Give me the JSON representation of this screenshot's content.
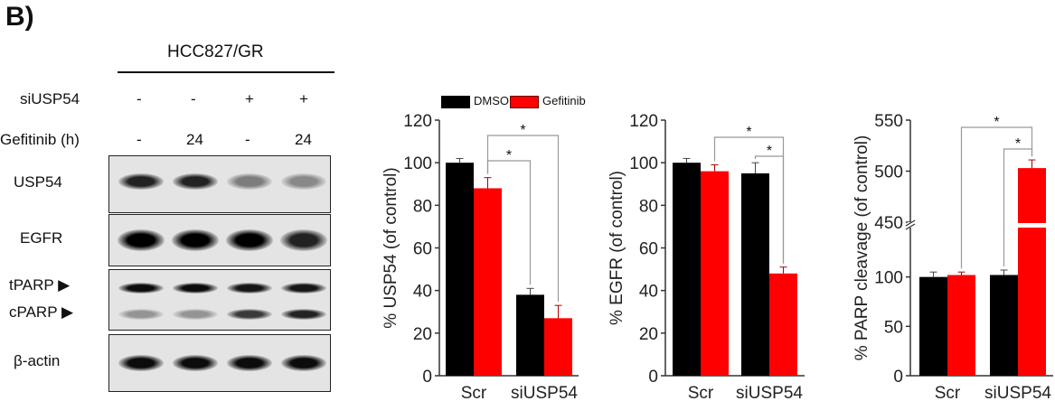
{
  "panel_label": "B)",
  "blot": {
    "cell_line": "HCC827/GR",
    "rows": [
      {
        "label": "siUSP54",
        "values": [
          "-",
          "-",
          "+",
          "+"
        ]
      },
      {
        "label": "Gefitinib (h)",
        "values": [
          "-",
          "24",
          "-",
          "24"
        ]
      }
    ],
    "panels": [
      {
        "label": "USP54",
        "intensity": [
          0.85,
          0.85,
          0.45,
          0.4
        ]
      },
      {
        "label": "EGFR",
        "intensity": [
          1,
          1,
          1,
          0.85
        ]
      },
      {
        "label": "tPARP ▶",
        "label2": "cPARP ▶",
        "intensity": [
          0.95,
          0.95,
          0.9,
          0.9
        ],
        "intensity2": [
          0.35,
          0.35,
          0.75,
          0.85
        ]
      },
      {
        "label": "β-actin",
        "intensity": [
          0.95,
          0.95,
          0.95,
          0.95
        ]
      }
    ]
  },
  "legend": [
    {
      "name": "DMSO",
      "color": "#000000"
    },
    {
      "name": "Gefitinib",
      "color": "#ff0000"
    }
  ],
  "chart_data": [
    {
      "type": "bar",
      "categories": [
        "Scr",
        "siUSP54"
      ],
      "ylabel": "% USP54 (of control)",
      "ylim": [
        0,
        120
      ],
      "yticks": [
        "0",
        "20",
        "40",
        "60",
        "80",
        "100",
        "120"
      ],
      "series": [
        {
          "name": "DMSO",
          "values": [
            100,
            38
          ],
          "errors": [
            2,
            3
          ]
        },
        {
          "name": "Gefitinib",
          "values": [
            88,
            27
          ],
          "errors": [
            5,
            6
          ]
        }
      ],
      "significance": [
        "*",
        "*"
      ]
    },
    {
      "type": "bar",
      "categories": [
        "Scr",
        "siUSP54"
      ],
      "ylabel": "% EGFR (of control)",
      "ylim": [
        0,
        120
      ],
      "yticks": [
        "0",
        "20",
        "40",
        "60",
        "80",
        "100",
        "120"
      ],
      "series": [
        {
          "name": "DMSO",
          "values": [
            100,
            95
          ],
          "errors": [
            2,
            5
          ]
        },
        {
          "name": "Gefitinib",
          "values": [
            96,
            48
          ],
          "errors": [
            3,
            3
          ]
        }
      ],
      "significance": [
        "*",
        "*"
      ]
    },
    {
      "type": "bar",
      "categories": [
        "Scr",
        "siUSP54"
      ],
      "ylabel": "% PARP cleavage (of control)",
      "ylim": [
        0,
        550
      ],
      "axis_break": [
        150,
        450
      ],
      "yticks": [
        "0",
        "50",
        "100",
        "450",
        "500",
        "550"
      ],
      "series": [
        {
          "name": "DMSO",
          "values": [
            100,
            102
          ],
          "errors": [
            5,
            5
          ]
        },
        {
          "name": "Gefitinib",
          "values": [
            102,
            503
          ],
          "errors": [
            3,
            8
          ]
        }
      ],
      "significance": [
        "*",
        "*"
      ]
    }
  ]
}
